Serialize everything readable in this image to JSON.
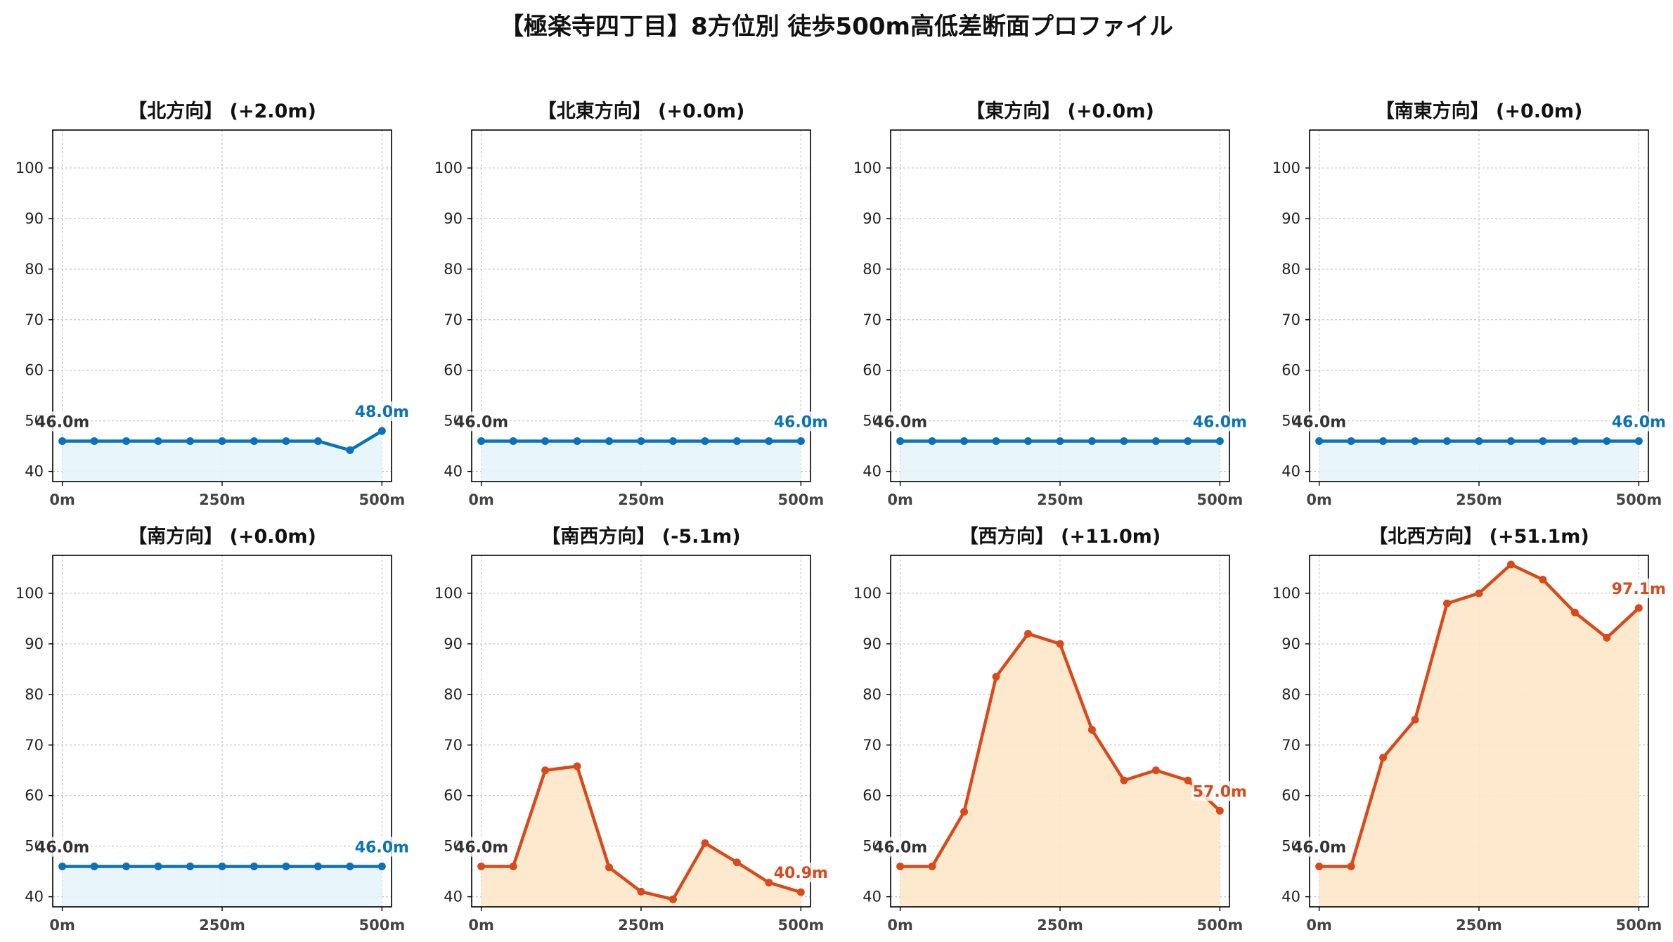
{
  "figure": {
    "title": "【極楽寺四丁目】8方位別 徒歩500m高低差断面プロファイル",
    "colors": {
      "rise_low": "#0a72b8",
      "fill_low": "#e6f4fb",
      "rise_high": "#d84a1b",
      "fill_high": "#fde7c8",
      "start_label": "#333333"
    }
  },
  "chart_data": [
    {
      "type": "area",
      "title": "【北方向】 (+2.0m)",
      "x": [
        0,
        50,
        100,
        150,
        200,
        250,
        300,
        350,
        400,
        450,
        500
      ],
      "y": [
        46.0,
        46.0,
        46.0,
        46.0,
        46.0,
        46.0,
        46.0,
        46.0,
        46.0,
        44.2,
        48.0
      ],
      "xticks": [
        "0m",
        "250m",
        "500m"
      ],
      "yticks": [
        40,
        50,
        60,
        70,
        80,
        90,
        100
      ],
      "ylim": [
        38,
        107.5
      ],
      "xlim": [
        -15,
        515
      ],
      "start_label": "46.0m",
      "end_label": "48.0m",
      "color": "blue",
      "grid": true
    },
    {
      "type": "area",
      "title": "【北東方向】 (+0.0m)",
      "x": [
        0,
        50,
        100,
        150,
        200,
        250,
        300,
        350,
        400,
        450,
        500
      ],
      "y": [
        46.0,
        46.0,
        46.0,
        46.0,
        46.0,
        46.0,
        46.0,
        46.0,
        46.0,
        46.0,
        46.0
      ],
      "xticks": [
        "0m",
        "250m",
        "500m"
      ],
      "yticks": [
        40,
        50,
        60,
        70,
        80,
        90,
        100
      ],
      "ylim": [
        38,
        107.5
      ],
      "xlim": [
        -15,
        515
      ],
      "start_label": "46.0m",
      "end_label": "46.0m",
      "color": "blue",
      "grid": true
    },
    {
      "type": "area",
      "title": "【東方向】 (+0.0m)",
      "x": [
        0,
        50,
        100,
        150,
        200,
        250,
        300,
        350,
        400,
        450,
        500
      ],
      "y": [
        46.0,
        46.0,
        46.0,
        46.0,
        46.0,
        46.0,
        46.0,
        46.0,
        46.0,
        46.0,
        46.0
      ],
      "xticks": [
        "0m",
        "250m",
        "500m"
      ],
      "yticks": [
        40,
        50,
        60,
        70,
        80,
        90,
        100
      ],
      "ylim": [
        38,
        107.5
      ],
      "xlim": [
        -15,
        515
      ],
      "start_label": "46.0m",
      "end_label": "46.0m",
      "color": "blue",
      "grid": true
    },
    {
      "type": "area",
      "title": "【南東方向】 (+0.0m)",
      "x": [
        0,
        50,
        100,
        150,
        200,
        250,
        300,
        350,
        400,
        450,
        500
      ],
      "y": [
        46.0,
        46.0,
        46.0,
        46.0,
        46.0,
        46.0,
        46.0,
        46.0,
        46.0,
        46.0,
        46.0
      ],
      "xticks": [
        "0m",
        "250m",
        "500m"
      ],
      "yticks": [
        40,
        50,
        60,
        70,
        80,
        90,
        100
      ],
      "ylim": [
        38,
        107.5
      ],
      "xlim": [
        -15,
        515
      ],
      "start_label": "46.0m",
      "end_label": "46.0m",
      "color": "blue",
      "grid": true
    },
    {
      "type": "area",
      "title": "【南方向】 (+0.0m)",
      "x": [
        0,
        50,
        100,
        150,
        200,
        250,
        300,
        350,
        400,
        450,
        500
      ],
      "y": [
        46.0,
        46.0,
        46.0,
        46.0,
        46.0,
        46.0,
        46.0,
        46.0,
        46.0,
        46.0,
        46.0
      ],
      "xticks": [
        "0m",
        "250m",
        "500m"
      ],
      "yticks": [
        40,
        50,
        60,
        70,
        80,
        90,
        100
      ],
      "ylim": [
        38,
        107.5
      ],
      "xlim": [
        -15,
        515
      ],
      "start_label": "46.0m",
      "end_label": "46.0m",
      "color": "blue",
      "grid": true
    },
    {
      "type": "area",
      "title": "【南西方向】 (-5.1m)",
      "x": [
        0,
        50,
        100,
        150,
        200,
        250,
        300,
        350,
        400,
        450,
        500
      ],
      "y": [
        46.0,
        46.0,
        65.0,
        65.8,
        45.8,
        41.0,
        39.5,
        50.6,
        46.8,
        42.8,
        40.9
      ],
      "xticks": [
        "0m",
        "250m",
        "500m"
      ],
      "yticks": [
        40,
        50,
        60,
        70,
        80,
        90,
        100
      ],
      "ylim": [
        38,
        107.5
      ],
      "xlim": [
        -15,
        515
      ],
      "start_label": "46.0m",
      "end_label": "40.9m",
      "color": "orange",
      "grid": true
    },
    {
      "type": "area",
      "title": "【西方向】 (+11.0m)",
      "x": [
        0,
        50,
        100,
        150,
        200,
        250,
        300,
        350,
        400,
        450,
        500
      ],
      "y": [
        46.0,
        46.0,
        56.8,
        83.5,
        92.0,
        90.0,
        73.0,
        63.0,
        65.0,
        63.0,
        57.0
      ],
      "xticks": [
        "0m",
        "250m",
        "500m"
      ],
      "yticks": [
        40,
        50,
        60,
        70,
        80,
        90,
        100
      ],
      "ylim": [
        38,
        107.5
      ],
      "xlim": [
        -15,
        515
      ],
      "start_label": "46.0m",
      "end_label": "57.0m",
      "color": "orange",
      "grid": true
    },
    {
      "type": "area",
      "title": "【北西方向】 (+51.1m)",
      "x": [
        0,
        50,
        100,
        150,
        200,
        250,
        300,
        350,
        400,
        450,
        500
      ],
      "y": [
        46.0,
        46.0,
        67.5,
        75.0,
        98.0,
        100.0,
        105.7,
        102.7,
        96.2,
        91.2,
        97.1
      ],
      "xticks": [
        "0m",
        "250m",
        "500m"
      ],
      "yticks": [
        40,
        50,
        60,
        70,
        80,
        90,
        100
      ],
      "ylim": [
        38,
        107.5
      ],
      "xlim": [
        -15,
        515
      ],
      "start_label": "46.0m",
      "end_label": "97.1m",
      "color": "orange",
      "grid": true
    }
  ]
}
